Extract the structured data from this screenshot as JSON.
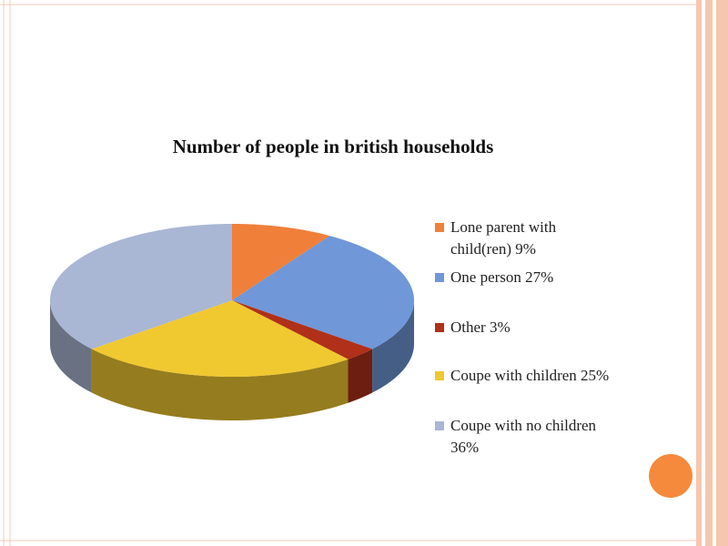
{
  "chart_data": {
    "type": "pie",
    "title": "Number of people in british households",
    "categories": [
      "Lone parent with child(ren) 9%",
      "One person 27%",
      "Other 3%",
      "Coupe with children 25%",
      "Coupe with no children 36%"
    ],
    "values": [
      9,
      27,
      3,
      25,
      36
    ],
    "colors": [
      "#f07f3a",
      "#7097d8",
      "#b0301a",
      "#f0c830",
      "#a9b6d4"
    ],
    "legend": "right"
  }
}
